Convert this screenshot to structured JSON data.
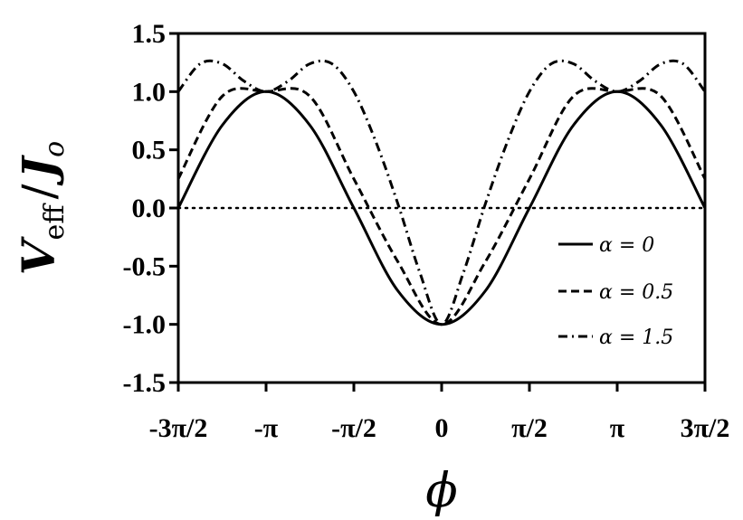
{
  "chart_data": {
    "type": "line",
    "title": "",
    "xlabel": "ϕ",
    "ylabel": {
      "main": "V",
      "sub": "eff",
      "sep": "/",
      "den": "J",
      "den_sub": "o"
    },
    "xlim": [
      -4.71239,
      4.71239
    ],
    "ylim": [
      -1.5,
      1.5
    ],
    "x_ticks": [
      {
        "value": -4.71239,
        "label": "-3π/2"
      },
      {
        "value": -3.14159,
        "label": "-π"
      },
      {
        "value": -1.5708,
        "label": "-π/2"
      },
      {
        "value": 0,
        "label": "0"
      },
      {
        "value": 1.5708,
        "label": "π/2"
      },
      {
        "value": 3.14159,
        "label": "π"
      },
      {
        "value": 4.71239,
        "label": "3π/2"
      }
    ],
    "y_ticks": [
      {
        "value": 1.5,
        "label": "1.5"
      },
      {
        "value": 1.0,
        "label": "1.0"
      },
      {
        "value": 0.5,
        "label": "0.5"
      },
      {
        "value": 0.0,
        "label": "0.0"
      },
      {
        "value": -0.5,
        "label": "-0.5"
      },
      {
        "value": -1.0,
        "label": "-1.0"
      },
      {
        "value": -1.5,
        "label": "-1.5"
      }
    ],
    "reference_line": {
      "y": 0,
      "style": "dotted"
    },
    "grid": false,
    "legend_position": "right",
    "series": [
      {
        "name": "α = 0",
        "style": "solid",
        "x": [
          -4.712,
          -3.927,
          -3.142,
          -2.356,
          -1.571,
          -0.785,
          0,
          0.785,
          1.571,
          2.356,
          3.142,
          3.927,
          4.712
        ],
        "y": [
          0.0,
          0.71,
          1.0,
          0.71,
          0.0,
          -0.71,
          -1.0,
          -0.71,
          0.0,
          0.71,
          1.0,
          0.71,
          0.0
        ]
      },
      {
        "name": "α = 0.5",
        "style": "dashed",
        "x": [
          -4.712,
          -3.927,
          -3.142,
          -2.356,
          -1.571,
          -0.785,
          0,
          0.785,
          1.571,
          2.356,
          3.142,
          3.927,
          4.712
        ],
        "y": [
          0.25,
          0.96,
          1.0,
          0.96,
          0.25,
          -0.46,
          -1.0,
          -0.46,
          0.25,
          0.96,
          1.0,
          0.96,
          0.25
        ]
      },
      {
        "name": "α = 1.5",
        "style": "dashdot",
        "x": [
          -4.712,
          -4.32,
          -3.927,
          -3.534,
          -3.142,
          -2.749,
          -2.356,
          -1.963,
          -1.571,
          -1.178,
          -0.785,
          -0.393,
          0,
          0.393,
          0.785,
          1.178,
          1.571,
          1.963,
          2.356,
          2.749,
          3.142,
          3.534,
          3.927,
          4.32,
          4.712
        ],
        "y": [
          1.0,
          1.24,
          1.24,
          1.09,
          1.0,
          1.09,
          1.24,
          1.24,
          1.0,
          0.57,
          0.04,
          -0.55,
          -1.0,
          -0.55,
          0.04,
          0.57,
          1.0,
          1.24,
          1.24,
          1.09,
          1.0,
          1.09,
          1.24,
          1.24,
          1.0
        ]
      }
    ]
  }
}
